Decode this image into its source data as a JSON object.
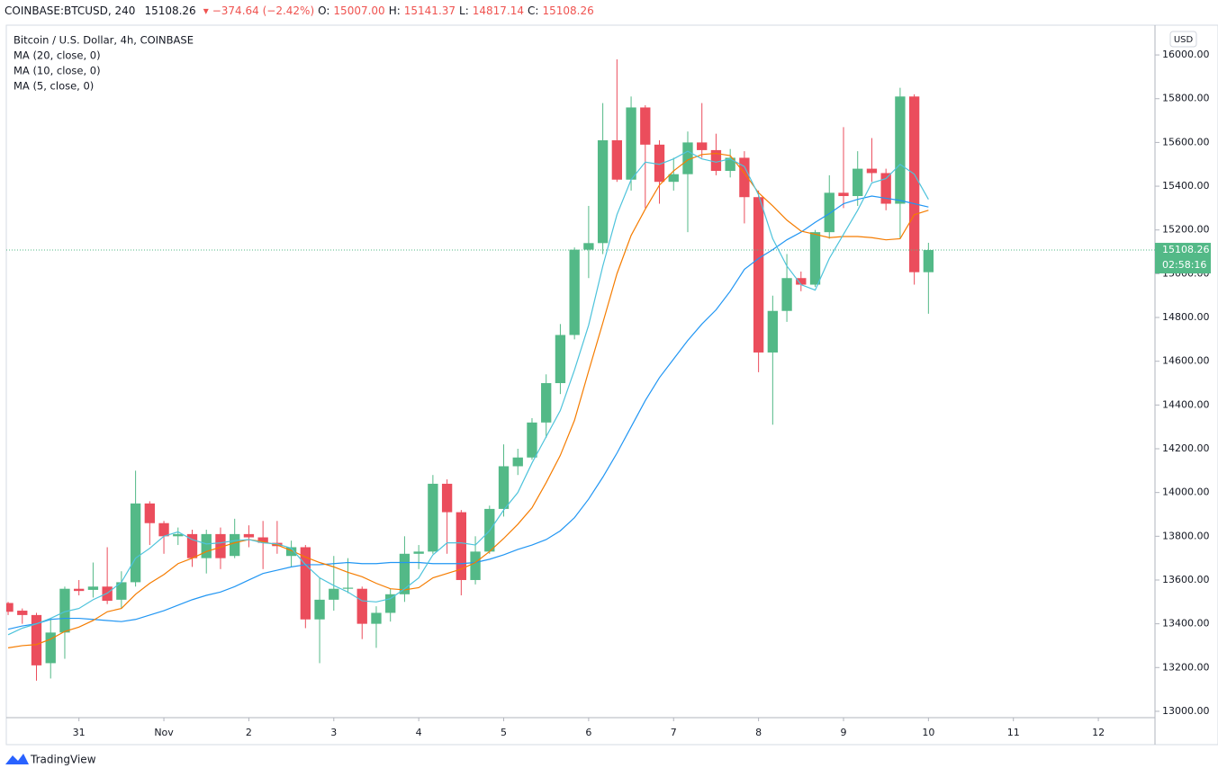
{
  "header": {
    "symbol": "COINBASE:BTCUSD, 240",
    "last": "15108.26",
    "change": "−374.64 (−2.42%)",
    "o_label": "O:",
    "open": "15007.00",
    "h_label": "H:",
    "high": "15141.37",
    "l_label": "L:",
    "low": "14817.14",
    "c_label": "C:",
    "close": "15108.26"
  },
  "currency_button": "USD",
  "brand": "TradingView",
  "chart_data": {
    "type": "candlestick",
    "title": "Bitcoin / U.S. Dollar, 4h, COINBASE",
    "up_color": "#53b987",
    "down_color": "#eb4d5c",
    "open": [
      13495,
      13460,
      13440,
      13220,
      13360,
      13560,
      13555,
      13570,
      13510,
      13590,
      13950,
      13860,
      13800,
      13810,
      13700,
      13810,
      13710,
      13810,
      13795,
      13770,
      13710,
      13750,
      13420,
      13510,
      13560,
      13560,
      13400,
      13450,
      13535,
      13720,
      13730,
      14040,
      13910,
      13600,
      13730,
      13925,
      14120,
      14160,
      14320,
      14500,
      14720,
      15110,
      15140,
      15610,
      15430,
      15760,
      15590,
      15420,
      15455,
      15600,
      15565,
      15470,
      15530,
      15350,
      14640,
      14830,
      14980,
      14950,
      15190,
      15370,
      15355,
      15480,
      15460,
      15320,
      15810,
      15007
    ],
    "high": [
      13500,
      13470,
      13450,
      13420,
      13570,
      13600,
      13680,
      13750,
      13640,
      14100,
      13960,
      13870,
      13840,
      13830,
      13830,
      13840,
      13880,
      13850,
      13870,
      13870,
      13780,
      13760,
      13610,
      13710,
      13700,
      13570,
      13480,
      13560,
      13800,
      13760,
      14080,
      14060,
      13920,
      13800,
      13940,
      14220,
      14200,
      14340,
      14540,
      14770,
      15120,
      15310,
      15780,
      15980,
      15810,
      15770,
      15610,
      15530,
      15650,
      15780,
      15640,
      15570,
      15560,
      15380,
      14900,
      15090,
      15010,
      15200,
      15450,
      15670,
      15560,
      15620,
      15480,
      15850,
      15820,
      15141.37
    ],
    "low": [
      13440,
      13400,
      13140,
      13150,
      13240,
      13530,
      13520,
      13490,
      13470,
      13570,
      13760,
      13720,
      13760,
      13660,
      13630,
      13650,
      13700,
      13750,
      13650,
      13720,
      13660,
      13380,
      13220,
      13460,
      13540,
      13330,
      13290,
      13410,
      13500,
      13650,
      13720,
      13720,
      13530,
      13580,
      13720,
      13890,
      14080,
      14150,
      14250,
      14450,
      14700,
      14980,
      15090,
      15420,
      15380,
      15300,
      15320,
      15380,
      15190,
      15530,
      15450,
      15440,
      15230,
      14550,
      14310,
      14780,
      14920,
      14940,
      15160,
      15300,
      15310,
      15420,
      15290,
      15160,
      14950,
      14817.14
    ],
    "close": [
      13455,
      13440,
      13210,
      13360,
      13560,
      13550,
      13570,
      13505,
      13590,
      13950,
      13860,
      13800,
      13810,
      13700,
      13810,
      13700,
      13810,
      13795,
      13770,
      13755,
      13750,
      13420,
      13510,
      13560,
      13565,
      13400,
      13450,
      13535,
      13720,
      13730,
      14040,
      13910,
      13600,
      13730,
      13925,
      14120,
      14160,
      14320,
      14500,
      14720,
      15110,
      15140,
      15610,
      15430,
      15760,
      15590,
      15420,
      15455,
      15600,
      15565,
      15470,
      15530,
      15350,
      14640,
      14830,
      14980,
      14950,
      15190,
      15370,
      15355,
      15480,
      15460,
      15320,
      15810,
      15007,
      15108.26
    ],
    "series": [
      {
        "name": "MA (20, close, 0)",
        "color": "#2196f3",
        "values": [
          13375,
          13390,
          13400,
          13420,
          13425,
          13425,
          13420,
          13415,
          13410,
          13420,
          13440,
          13460,
          13485,
          13510,
          13530,
          13545,
          13570,
          13600,
          13630,
          13645,
          13660,
          13670,
          13670,
          13675,
          13680,
          13675,
          13675,
          13680,
          13680,
          13680,
          13675,
          13675,
          13675,
          13680,
          13695,
          13715,
          13740,
          13760,
          13785,
          13825,
          13885,
          13970,
          14070,
          14180,
          14300,
          14420,
          14525,
          14610,
          14695,
          14770,
          14835,
          14920,
          15020,
          15070,
          15110,
          15155,
          15190,
          15235,
          15275,
          15320,
          15340,
          15355,
          15345,
          15335,
          15320,
          15305
        ]
      },
      {
        "name": "MA (10, close, 0)",
        "color": "#f57c00",
        "values": [
          13290,
          13300,
          13305,
          13330,
          13365,
          13385,
          13415,
          13455,
          13470,
          13535,
          13585,
          13625,
          13675,
          13700,
          13730,
          13750,
          13770,
          13785,
          13775,
          13760,
          13735,
          13705,
          13680,
          13660,
          13635,
          13615,
          13585,
          13560,
          13555,
          13565,
          13610,
          13630,
          13650,
          13680,
          13730,
          13790,
          13855,
          13930,
          14045,
          14170,
          14330,
          14555,
          14775,
          15000,
          15175,
          15295,
          15405,
          15470,
          15520,
          15545,
          15550,
          15540,
          15460,
          15370,
          15310,
          15245,
          15195,
          15180,
          15165,
          15170,
          15170,
          15165,
          15155,
          15160,
          15270,
          15290
        ]
      },
      {
        "name": "MA (5, close, 0)",
        "color": "#4dc3db",
        "values": [
          13350,
          13380,
          13400,
          13425,
          13455,
          13470,
          13510,
          13540,
          13590,
          13700,
          13745,
          13800,
          13820,
          13785,
          13765,
          13770,
          13780,
          13785,
          13770,
          13765,
          13745,
          13670,
          13610,
          13575,
          13545,
          13505,
          13500,
          13515,
          13560,
          13610,
          13715,
          13770,
          13770,
          13760,
          13825,
          13920,
          14000,
          14135,
          14255,
          14375,
          14560,
          14765,
          15035,
          15270,
          15430,
          15510,
          15500,
          15525,
          15560,
          15525,
          15510,
          15525,
          15490,
          15360,
          15160,
          15035,
          14950,
          14925,
          15070,
          15180,
          15290,
          15415,
          15435,
          15500,
          15455,
          15340
        ]
      }
    ],
    "xlim": [
      -0.13,
      81
    ],
    "xticks": [
      {
        "value": 5,
        "label": "31"
      },
      {
        "value": 11,
        "label": "Nov"
      },
      {
        "value": 17,
        "label": "2"
      },
      {
        "value": 23,
        "label": "3"
      },
      {
        "value": 29,
        "label": "4"
      },
      {
        "value": 35,
        "label": "5"
      },
      {
        "value": 41,
        "label": "6"
      },
      {
        "value": 47,
        "label": "7"
      },
      {
        "value": 53,
        "label": "8"
      },
      {
        "value": 59,
        "label": "9"
      },
      {
        "value": 65,
        "label": "10"
      },
      {
        "value": 71,
        "label": "11"
      },
      {
        "value": 77,
        "label": "12"
      }
    ],
    "ylim": [
      12971,
      16136
    ],
    "yticks": [
      {
        "value": 13000,
        "label": "13000.00"
      },
      {
        "value": 13200,
        "label": "13200.00"
      },
      {
        "value": 13400,
        "label": "13400.00"
      },
      {
        "value": 13600,
        "label": "13600.00"
      },
      {
        "value": 13800,
        "label": "13800.00"
      },
      {
        "value": 14000,
        "label": "14000.00"
      },
      {
        "value": 14200,
        "label": "14200.00"
      },
      {
        "value": 14400,
        "label": "14400.00"
      },
      {
        "value": 14600,
        "label": "14600.00"
      },
      {
        "value": 14800,
        "label": "14800.00"
      },
      {
        "value": 15000,
        "label": "15000.00"
      },
      {
        "value": 15200,
        "label": "15200.00"
      },
      {
        "value": 15400,
        "label": "15400.00"
      },
      {
        "value": 15600,
        "label": "15600.00"
      },
      {
        "value": 15800,
        "label": "15800.00"
      },
      {
        "value": 16000,
        "label": "16000.00"
      }
    ],
    "grid": false,
    "last_price_label": "15108.26",
    "countdown": "02:58:16"
  }
}
